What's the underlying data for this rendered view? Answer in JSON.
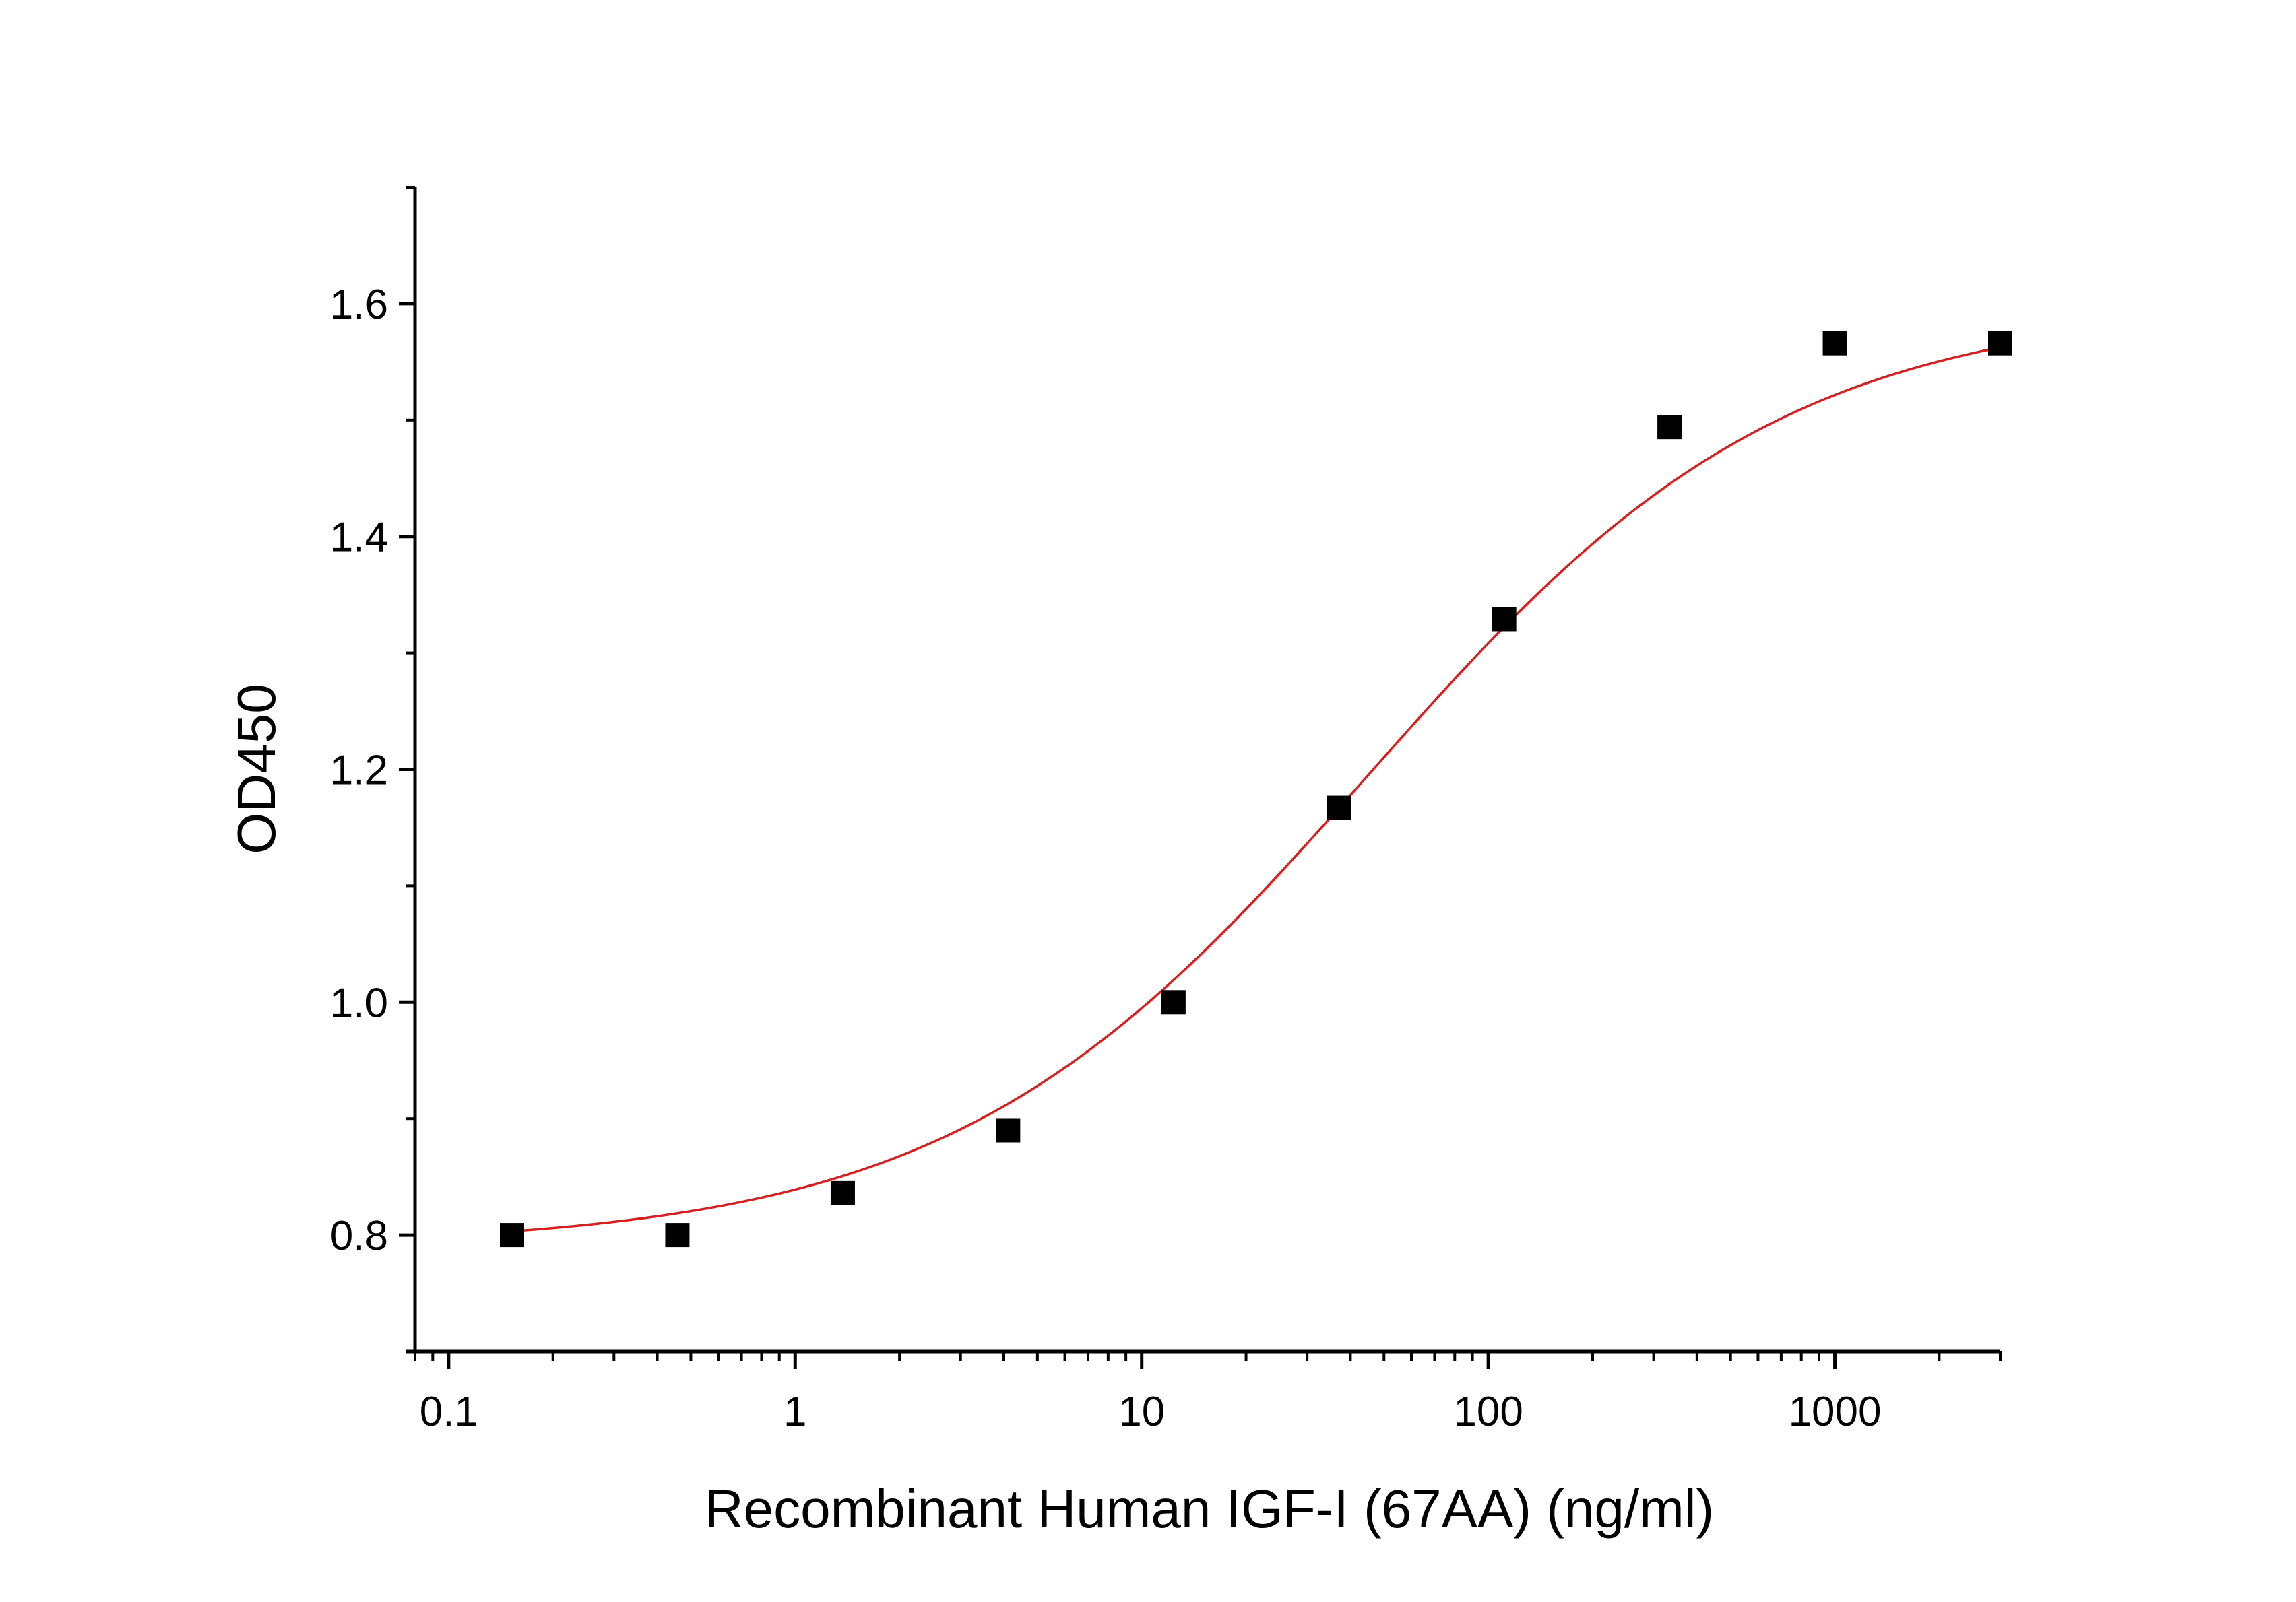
{
  "chart_data": {
    "type": "scatter",
    "title": "",
    "xlabel": "Recombinant Human IGF-I (67AA) (ng/ml)",
    "ylabel": "OD450",
    "x_scale": "log",
    "xlim": [
      0.08,
      3000
    ],
    "ylim": [
      0.7,
      1.7
    ],
    "x_ticks": [
      0.1,
      1,
      10,
      100,
      1000
    ],
    "x_tick_labels": [
      "0.1",
      "1",
      "10",
      "100",
      "1000"
    ],
    "y_ticks": [
      0.8,
      1.0,
      1.2,
      1.4,
      1.6
    ],
    "y_tick_labels": [
      "0.8",
      "1.0",
      "1.2",
      "1.4",
      "1.6"
    ],
    "grid": false,
    "legend": "none",
    "series": [
      {
        "marker": "square",
        "color": "#000000",
        "x": [
          0.1524,
          0.4572,
          1.372,
          4.115,
          12.35,
          37.04,
          111.1,
          333.3,
          1000,
          3000
        ],
        "y": [
          0.8,
          0.8,
          0.836,
          0.89,
          1.0,
          1.167,
          1.329,
          1.494,
          1.566,
          1.566
        ]
      }
    ],
    "fit_curve": {
      "model": "4PL",
      "color": "#d62020",
      "bottom": 0.79,
      "top": 1.6,
      "ec50": 45,
      "hill": 0.72
    }
  }
}
